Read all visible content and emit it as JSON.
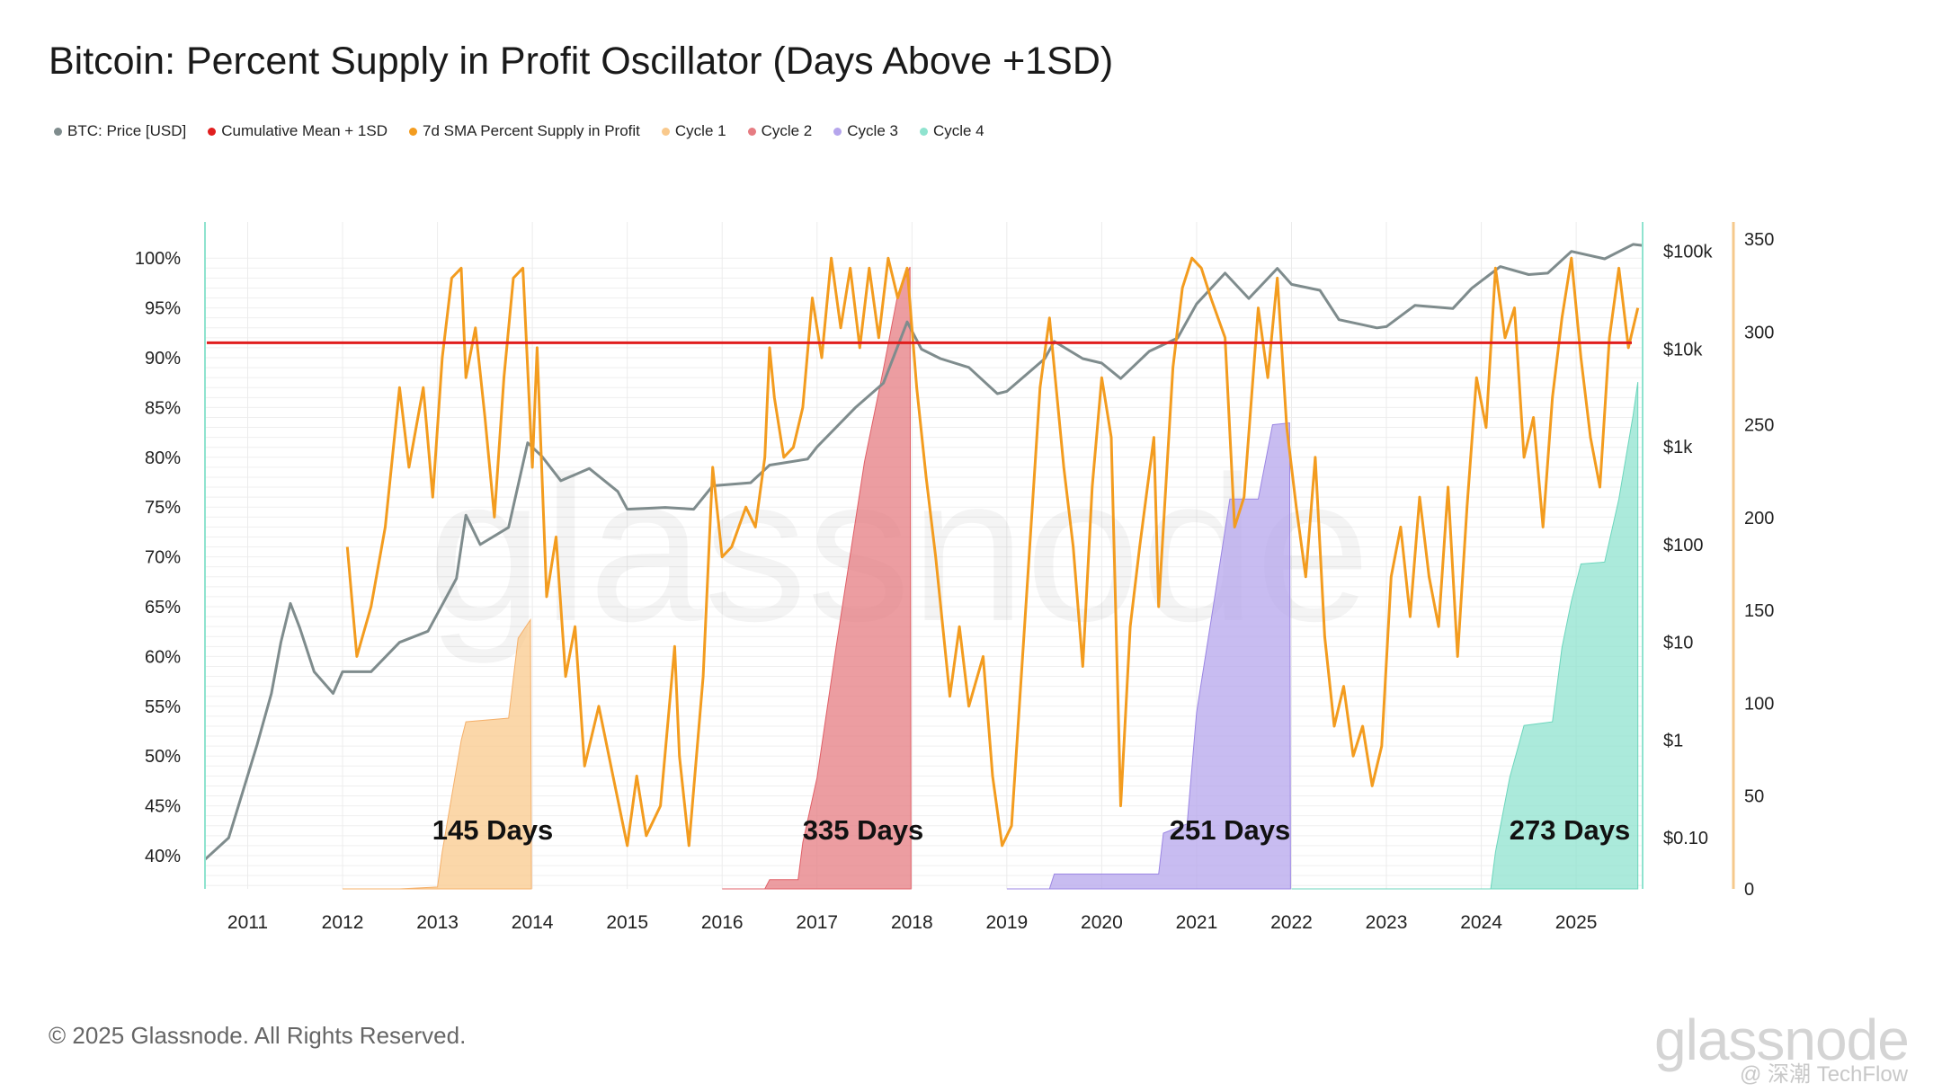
{
  "title": "Bitcoin: Percent Supply in Profit Oscillator (Days Above +1SD)",
  "legend": [
    {
      "label": "BTC: Price [USD]",
      "color": "#7f8c8d"
    },
    {
      "label": "Cumulative Mean + 1SD",
      "color": "#e01e1e"
    },
    {
      "label": "7d SMA Percent Supply in Profit",
      "color": "#f39c1f"
    },
    {
      "label": "Cycle 1",
      "color": "#f9c98c"
    },
    {
      "label": "Cycle 2",
      "color": "#e67c82"
    },
    {
      "label": "Cycle 3",
      "color": "#b5a5ec"
    },
    {
      "label": "Cycle 4",
      "color": "#8fe3cf"
    }
  ],
  "copyright": "© 2025 Glassnode. All Rights Reserved.",
  "watermark": "glassnode",
  "source_tag": "@ 深潮 TechFlow",
  "chart_data": {
    "type": "line",
    "x_ticks": [
      "2011",
      "2012",
      "2013",
      "2014",
      "2015",
      "2016",
      "2017",
      "2018",
      "2019",
      "2020",
      "2021",
      "2022",
      "2023",
      "2024",
      "2025"
    ],
    "left_axis": {
      "ticks": [
        "100%",
        "95%",
        "90%",
        "85%",
        "80%",
        "75%",
        "70%",
        "65%",
        "60%",
        "55%",
        "50%",
        "45%",
        "40%"
      ],
      "range": [
        0.36,
        1.02
      ]
    },
    "price_axis": {
      "ticks": [
        "$100k",
        "$10k",
        "$1k",
        "$100",
        "$10",
        "$1",
        "$0.10"
      ],
      "scale": "log",
      "range": [
        0.03,
        200000
      ]
    },
    "days_axis": {
      "ticks": [
        "350",
        "300",
        "250",
        "200",
        "150",
        "100",
        "50",
        "0"
      ],
      "range": [
        0,
        350
      ]
    },
    "mean_plus_1sd": 0.915,
    "annotations": [
      "145 Days",
      "335 Days",
      "251 Days",
      "273 Days"
    ],
    "price_series": {
      "name": "BTC: Price [USD]",
      "points": [
        [
          2010.55,
          0.06
        ],
        [
          2010.8,
          0.1
        ],
        [
          2010.95,
          0.3
        ],
        [
          2011.1,
          0.9
        ],
        [
          2011.25,
          3
        ],
        [
          2011.35,
          10
        ],
        [
          2011.45,
          25
        ],
        [
          2011.55,
          14
        ],
        [
          2011.7,
          5
        ],
        [
          2011.9,
          3
        ],
        [
          2012.0,
          5
        ],
        [
          2012.3,
          5
        ],
        [
          2012.6,
          10
        ],
        [
          2012.9,
          13
        ],
        [
          2013.2,
          45
        ],
        [
          2013.3,
          200
        ],
        [
          2013.45,
          100
        ],
        [
          2013.75,
          150
        ],
        [
          2013.95,
          1100
        ],
        [
          2014.1,
          800
        ],
        [
          2014.3,
          450
        ],
        [
          2014.6,
          600
        ],
        [
          2014.9,
          350
        ],
        [
          2015.0,
          230
        ],
        [
          2015.4,
          240
        ],
        [
          2015.7,
          230
        ],
        [
          2015.9,
          400
        ],
        [
          2016.3,
          430
        ],
        [
          2016.5,
          650
        ],
        [
          2016.9,
          750
        ],
        [
          2017.0,
          1000
        ],
        [
          2017.4,
          2500
        ],
        [
          2017.7,
          4500
        ],
        [
          2017.95,
          19000
        ],
        [
          2018.1,
          10000
        ],
        [
          2018.3,
          8000
        ],
        [
          2018.6,
          6500
        ],
        [
          2018.9,
          3500
        ],
        [
          2019.0,
          3700
        ],
        [
          2019.4,
          8000
        ],
        [
          2019.5,
          12000
        ],
        [
          2019.8,
          8000
        ],
        [
          2020.0,
          7200
        ],
        [
          2020.2,
          5000
        ],
        [
          2020.5,
          9500
        ],
        [
          2020.8,
          13000
        ],
        [
          2021.0,
          29000
        ],
        [
          2021.3,
          60000
        ],
        [
          2021.55,
          33000
        ],
        [
          2021.85,
          67000
        ],
        [
          2022.0,
          46000
        ],
        [
          2022.3,
          40000
        ],
        [
          2022.5,
          20000
        ],
        [
          2022.9,
          16500
        ],
        [
          2023.0,
          17000
        ],
        [
          2023.3,
          28000
        ],
        [
          2023.7,
          26000
        ],
        [
          2023.9,
          42000
        ],
        [
          2024.2,
          70000
        ],
        [
          2024.5,
          58000
        ],
        [
          2024.7,
          60000
        ],
        [
          2024.95,
          100000
        ],
        [
          2025.3,
          84000
        ],
        [
          2025.6,
          118000
        ],
        [
          2025.7,
          115000
        ]
      ]
    },
    "oscillator_series": {
      "name": "7d SMA Percent Supply in Profit",
      "points": [
        [
          2012.05,
          0.71
        ],
        [
          2012.15,
          0.6
        ],
        [
          2012.3,
          0.65
        ],
        [
          2012.45,
          0.73
        ],
        [
          2012.6,
          0.87
        ],
        [
          2012.7,
          0.79
        ],
        [
          2012.85,
          0.87
        ],
        [
          2012.95,
          0.76
        ],
        [
          2013.05,
          0.9
        ],
        [
          2013.15,
          0.98
        ],
        [
          2013.25,
          0.99
        ],
        [
          2013.3,
          0.88
        ],
        [
          2013.4,
          0.93
        ],
        [
          2013.5,
          0.84
        ],
        [
          2013.6,
          0.74
        ],
        [
          2013.7,
          0.88
        ],
        [
          2013.8,
          0.98
        ],
        [
          2013.9,
          0.99
        ],
        [
          2014.0,
          0.79
        ],
        [
          2014.05,
          0.91
        ],
        [
          2014.15,
          0.66
        ],
        [
          2014.25,
          0.72
        ],
        [
          2014.35,
          0.58
        ],
        [
          2014.45,
          0.63
        ],
        [
          2014.55,
          0.49
        ],
        [
          2014.7,
          0.55
        ],
        [
          2014.85,
          0.48
        ],
        [
          2015.0,
          0.41
        ],
        [
          2015.1,
          0.48
        ],
        [
          2015.2,
          0.42
        ],
        [
          2015.35,
          0.45
        ],
        [
          2015.5,
          0.61
        ],
        [
          2015.55,
          0.5
        ],
        [
          2015.65,
          0.41
        ],
        [
          2015.8,
          0.58
        ],
        [
          2015.9,
          0.79
        ],
        [
          2016.0,
          0.7
        ],
        [
          2016.1,
          0.71
        ],
        [
          2016.25,
          0.75
        ],
        [
          2016.35,
          0.73
        ],
        [
          2016.45,
          0.8
        ],
        [
          2016.5,
          0.91
        ],
        [
          2016.55,
          0.86
        ],
        [
          2016.65,
          0.8
        ],
        [
          2016.75,
          0.81
        ],
        [
          2016.85,
          0.85
        ],
        [
          2016.95,
          0.96
        ],
        [
          2017.05,
          0.9
        ],
        [
          2017.15,
          1.0
        ],
        [
          2017.25,
          0.93
        ],
        [
          2017.35,
          0.99
        ],
        [
          2017.45,
          0.91
        ],
        [
          2017.55,
          0.99
        ],
        [
          2017.65,
          0.92
        ],
        [
          2017.75,
          1.0
        ],
        [
          2017.85,
          0.96
        ],
        [
          2017.95,
          0.99
        ],
        [
          2018.05,
          0.87
        ],
        [
          2018.15,
          0.78
        ],
        [
          2018.25,
          0.7
        ],
        [
          2018.4,
          0.56
        ],
        [
          2018.5,
          0.63
        ],
        [
          2018.6,
          0.55
        ],
        [
          2018.75,
          0.6
        ],
        [
          2018.85,
          0.48
        ],
        [
          2018.95,
          0.41
        ],
        [
          2019.05,
          0.43
        ],
        [
          2019.2,
          0.65
        ],
        [
          2019.35,
          0.87
        ],
        [
          2019.45,
          0.94
        ],
        [
          2019.6,
          0.79
        ],
        [
          2019.7,
          0.71
        ],
        [
          2019.8,
          0.59
        ],
        [
          2019.9,
          0.77
        ],
        [
          2020.0,
          0.88
        ],
        [
          2020.1,
          0.82
        ],
        [
          2020.2,
          0.45
        ],
        [
          2020.3,
          0.63
        ],
        [
          2020.4,
          0.71
        ],
        [
          2020.55,
          0.82
        ],
        [
          2020.6,
          0.65
        ],
        [
          2020.75,
          0.89
        ],
        [
          2020.85,
          0.97
        ],
        [
          2020.95,
          1.0
        ],
        [
          2021.05,
          0.99
        ],
        [
          2021.15,
          0.96
        ],
        [
          2021.3,
          0.92
        ],
        [
          2021.4,
          0.73
        ],
        [
          2021.5,
          0.76
        ],
        [
          2021.65,
          0.95
        ],
        [
          2021.75,
          0.88
        ],
        [
          2021.85,
          0.98
        ],
        [
          2021.95,
          0.83
        ],
        [
          2022.05,
          0.75
        ],
        [
          2022.15,
          0.68
        ],
        [
          2022.25,
          0.8
        ],
        [
          2022.35,
          0.62
        ],
        [
          2022.45,
          0.53
        ],
        [
          2022.55,
          0.57
        ],
        [
          2022.65,
          0.5
        ],
        [
          2022.75,
          0.53
        ],
        [
          2022.85,
          0.47
        ],
        [
          2022.95,
          0.51
        ],
        [
          2023.05,
          0.68
        ],
        [
          2023.15,
          0.73
        ],
        [
          2023.25,
          0.64
        ],
        [
          2023.35,
          0.76
        ],
        [
          2023.45,
          0.68
        ],
        [
          2023.55,
          0.63
        ],
        [
          2023.65,
          0.77
        ],
        [
          2023.75,
          0.6
        ],
        [
          2023.85,
          0.75
        ],
        [
          2023.95,
          0.88
        ],
        [
          2024.05,
          0.83
        ],
        [
          2024.15,
          0.99
        ],
        [
          2024.25,
          0.92
        ],
        [
          2024.35,
          0.95
        ],
        [
          2024.45,
          0.8
        ],
        [
          2024.55,
          0.84
        ],
        [
          2024.65,
          0.73
        ],
        [
          2024.75,
          0.86
        ],
        [
          2024.85,
          0.94
        ],
        [
          2024.95,
          1.0
        ],
        [
          2025.05,
          0.9
        ],
        [
          2025.15,
          0.82
        ],
        [
          2025.25,
          0.77
        ],
        [
          2025.35,
          0.92
        ],
        [
          2025.45,
          0.99
        ],
        [
          2025.55,
          0.91
        ],
        [
          2025.65,
          0.95
        ]
      ]
    },
    "cycles": [
      {
        "name": "Cycle 1",
        "points": [
          [
            2012.0,
            0
          ],
          [
            2012.6,
            0
          ],
          [
            2013.0,
            1
          ],
          [
            2013.05,
            20
          ],
          [
            2013.25,
            80
          ],
          [
            2013.3,
            90
          ],
          [
            2013.75,
            92
          ],
          [
            2013.85,
            135
          ],
          [
            2013.98,
            145
          ],
          [
            2013.99,
            0
          ]
        ]
      },
      {
        "name": "Cycle 2",
        "points": [
          [
            2016.0,
            0
          ],
          [
            2016.45,
            0
          ],
          [
            2016.5,
            5
          ],
          [
            2016.8,
            5
          ],
          [
            2016.85,
            25
          ],
          [
            2017.0,
            60
          ],
          [
            2017.2,
            130
          ],
          [
            2017.5,
            230
          ],
          [
            2017.7,
            280
          ],
          [
            2017.85,
            320
          ],
          [
            2017.98,
            335
          ],
          [
            2017.99,
            0
          ]
        ]
      },
      {
        "name": "Cycle 3",
        "points": [
          [
            2019.0,
            0
          ],
          [
            2019.45,
            0
          ],
          [
            2019.5,
            8
          ],
          [
            2020.6,
            8
          ],
          [
            2020.65,
            30
          ],
          [
            2020.9,
            35
          ],
          [
            2021.0,
            95
          ],
          [
            2021.2,
            160
          ],
          [
            2021.35,
            210
          ],
          [
            2021.65,
            210
          ],
          [
            2021.8,
            250
          ],
          [
            2021.98,
            251
          ],
          [
            2021.99,
            0
          ]
        ]
      },
      {
        "name": "Cycle 4",
        "points": [
          [
            2022.0,
            0
          ],
          [
            2024.1,
            0
          ],
          [
            2024.15,
            20
          ],
          [
            2024.3,
            60
          ],
          [
            2024.45,
            88
          ],
          [
            2024.75,
            90
          ],
          [
            2024.85,
            130
          ],
          [
            2024.95,
            155
          ],
          [
            2025.05,
            175
          ],
          [
            2025.3,
            176
          ],
          [
            2025.45,
            210
          ],
          [
            2025.6,
            255
          ],
          [
            2025.65,
            273
          ]
        ]
      }
    ]
  }
}
